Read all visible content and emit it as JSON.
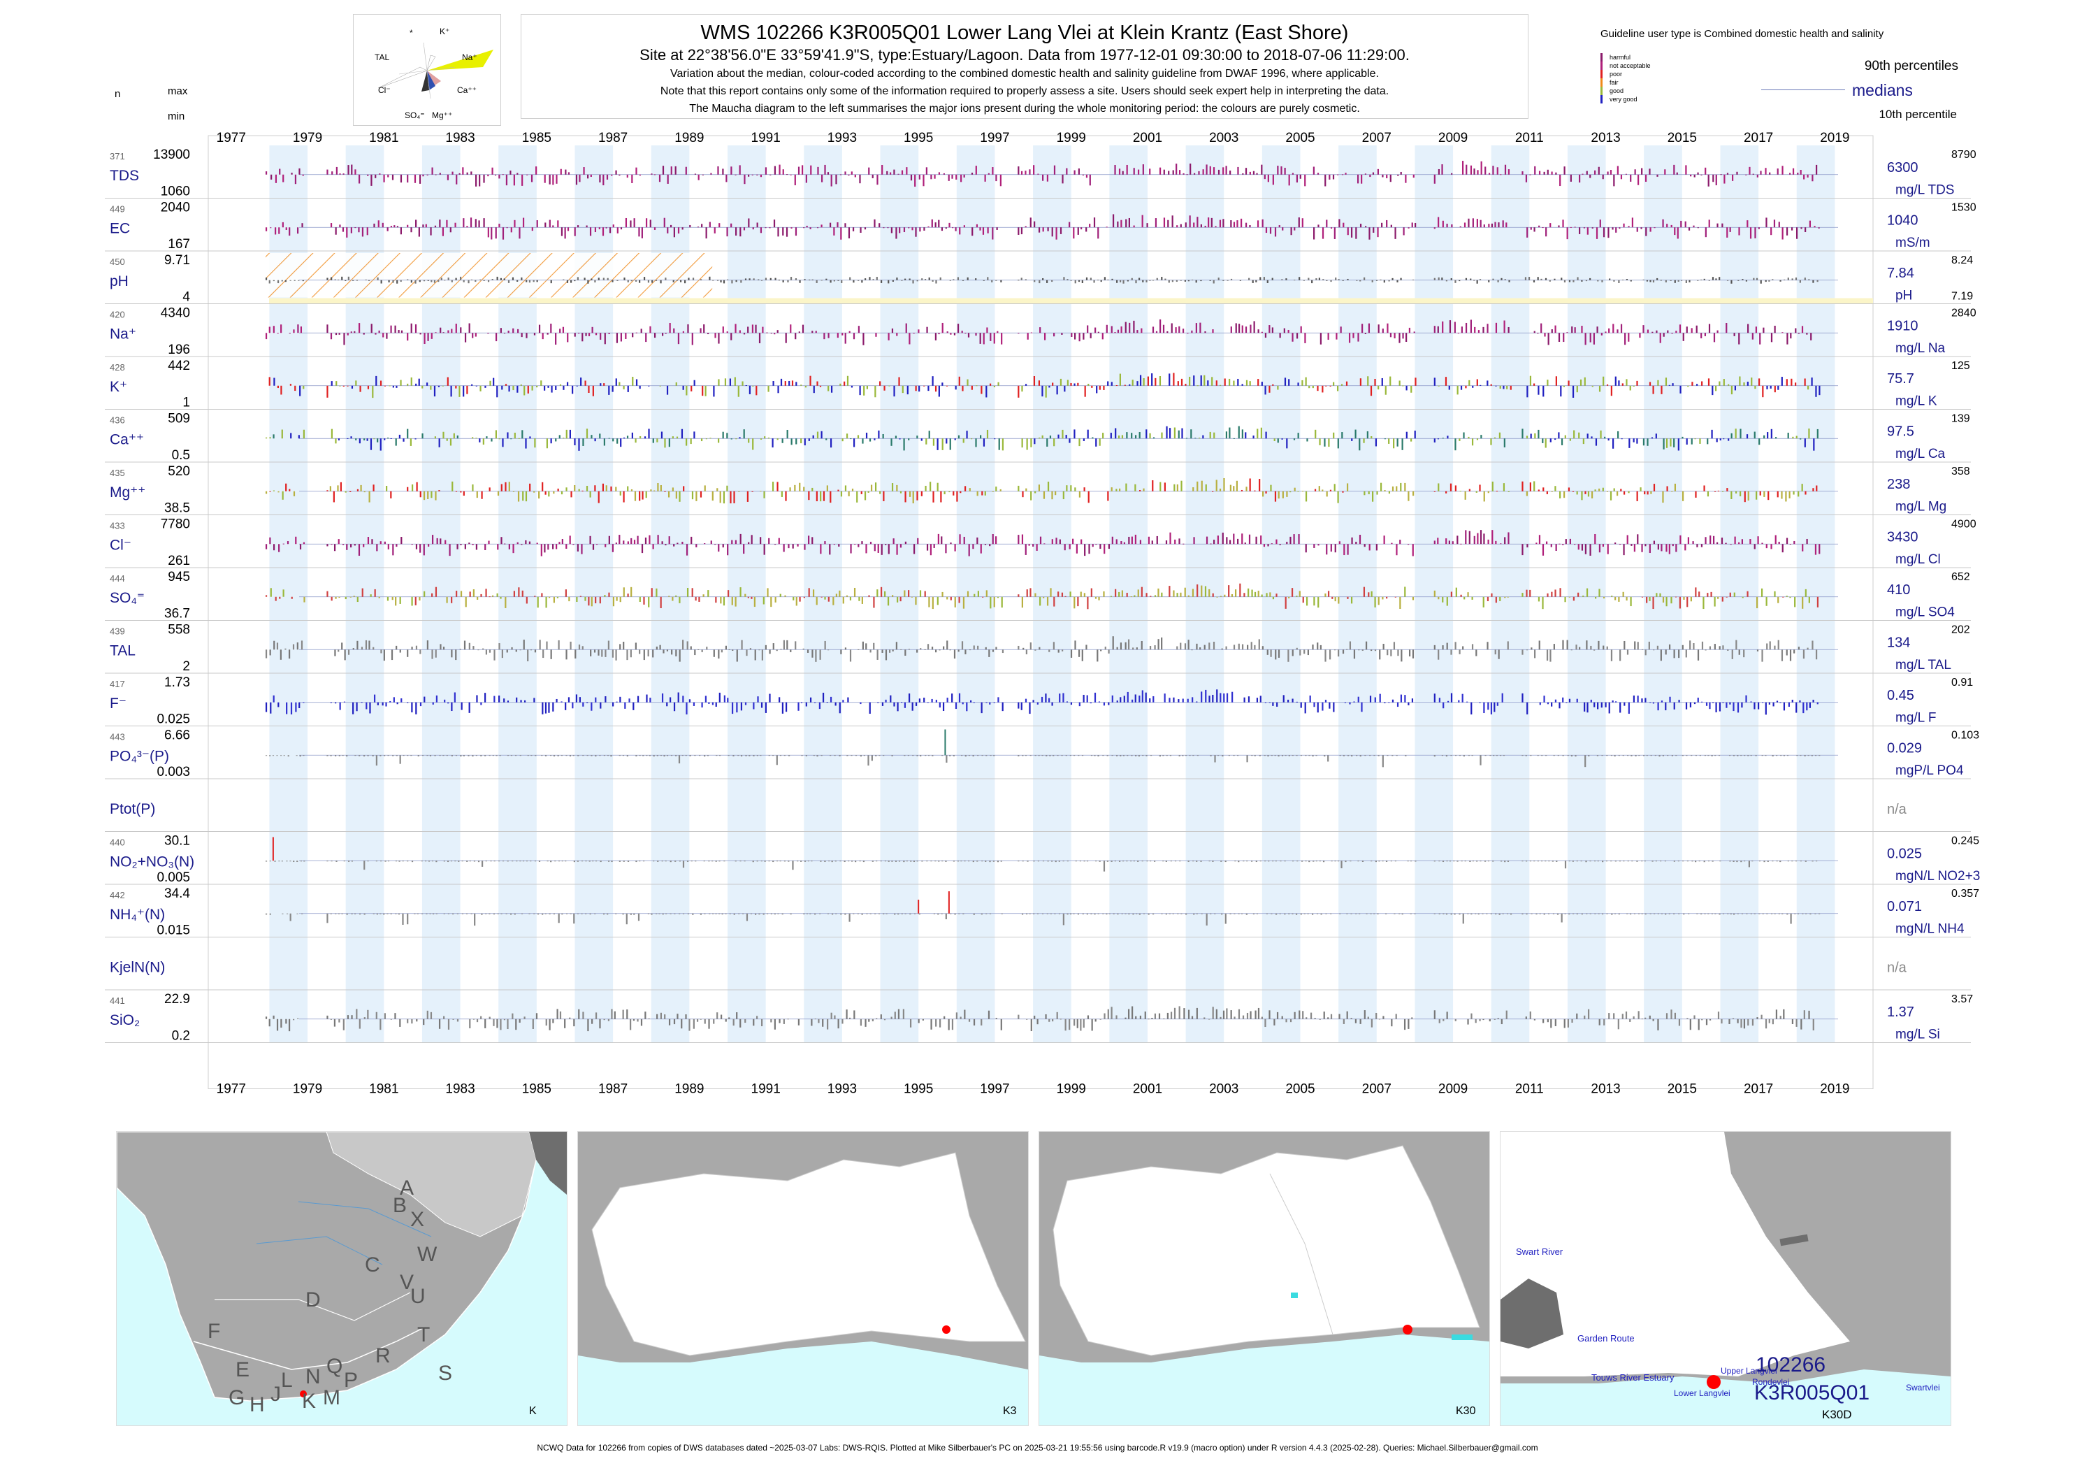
{
  "header": {
    "title": "WMS 102266 K3R005Q01 Lower Lang Vlei at Klein Krantz (East Shore)",
    "subtitle": "Site at 22°38'56.0\"E 33°59'41.9\"S, type:Estuary/Lagoon.  Data from 1977-12-01 09:30:00 to 2018-07-06 11:29:00.",
    "note1": "Variation about the median,  colour-coded according to the combined domestic health and salinity guideline from DWAF 1996, where applicable.",
    "note2": "Note that this report contains only some of the information required to properly assess a site. Users should seek expert help in interpreting the data.",
    "note3": "The Maucha diagram to the left summarises the major ions present during the whole monitoring period: the colours are purely cosmetic."
  },
  "maucha": {
    "labels": [
      "*",
      "K⁺",
      "TAL",
      "Na⁺",
      "Cl⁻",
      "Ca⁺⁺",
      "SO₄⁼",
      "Mg⁺⁺"
    ]
  },
  "left_header": {
    "n": "n",
    "max": "max",
    "min": "min"
  },
  "legend": {
    "guideline_text": "Guideline user type is Combined domestic health and salinity",
    "classes": [
      {
        "label": "harmful",
        "color": "#8b1a6b"
      },
      {
        "label": "not acceptable",
        "color": "#b0207a"
      },
      {
        "label": "poor",
        "color": "#e02020"
      },
      {
        "label": "fair",
        "color": "#f08a1a"
      },
      {
        "label": "good",
        "color": "#9ab83a"
      },
      {
        "label": "very good",
        "color": "#2020c0"
      }
    ],
    "p90_label": "90th percentiles",
    "median_label": "medians",
    "p10_label": "10th percentile"
  },
  "chart_data": {
    "type": "bar",
    "title": "WMS 102266 K3R005Q01 Lower Lang Vlei at Klein Krantz (East Shore)",
    "xlabel": "",
    "x_range": [
      1976.4,
      2020.0
    ],
    "years": [
      "1977",
      "1979",
      "1981",
      "1983",
      "1985",
      "1987",
      "1989",
      "1991",
      "1993",
      "1995",
      "1997",
      "1999",
      "2001",
      "2003",
      "2005",
      "2007",
      "2009",
      "2011",
      "2013",
      "2015",
      "2017",
      "2019"
    ],
    "grid": true,
    "legend": "top-right",
    "panels": [
      {
        "name": "TDS",
        "label": "TDS",
        "n": "371",
        "max": "13900",
        "min": "1060",
        "median": "6300",
        "p90": "8790",
        "p10": "",
        "unit": "mg/L TDS",
        "scheme": "salinity"
      },
      {
        "name": "EC",
        "label": "EC",
        "n": "449",
        "max": "2040",
        "min": "167",
        "median": "1040",
        "p90": "1530",
        "p10": "",
        "unit": "mS/m",
        "scheme": "salinity"
      },
      {
        "name": "pH",
        "label": "pH",
        "n": "450",
        "max": "9.71",
        "min": "4",
        "median": "7.84",
        "p90": "8.24",
        "p10": "7.19",
        "unit": "pH",
        "scheme": "ph"
      },
      {
        "name": "Na",
        "label": "Na⁺",
        "n": "420",
        "max": "4340",
        "min": "196",
        "median": "1910",
        "p90": "2840",
        "p10": "",
        "unit": "mg/L Na",
        "scheme": "salinity"
      },
      {
        "name": "K",
        "label": "K⁺",
        "n": "428",
        "max": "442",
        "min": "1",
        "median": "75.7",
        "p90": "125",
        "p10": "",
        "unit": "mg/L K",
        "scheme": "k"
      },
      {
        "name": "Ca",
        "label": "Ca⁺⁺",
        "n": "436",
        "max": "509",
        "min": "0.5",
        "median": "97.5",
        "p90": "139",
        "p10": "",
        "unit": "mg/L Ca",
        "scheme": "ca"
      },
      {
        "name": "Mg",
        "label": "Mg⁺⁺",
        "n": "435",
        "max": "520",
        "min": "38.5",
        "median": "238",
        "p90": "358",
        "p10": "",
        "unit": "mg/L Mg",
        "scheme": "mg"
      },
      {
        "name": "Cl",
        "label": "Cl⁻",
        "n": "433",
        "max": "7780",
        "min": "261",
        "median": "3430",
        "p90": "4900",
        "p10": "",
        "unit": "mg/L Cl",
        "scheme": "salinity"
      },
      {
        "name": "SO4",
        "label": "SO₄⁼",
        "n": "444",
        "max": "945",
        "min": "36.7",
        "median": "410",
        "p90": "652",
        "p10": "",
        "unit": "mg/L SO4",
        "scheme": "so4"
      },
      {
        "name": "TAL",
        "label": "TAL",
        "n": "439",
        "max": "558",
        "min": "2",
        "median": "134",
        "p90": "202",
        "p10": "",
        "unit": "mg/L TAL",
        "scheme": "grey"
      },
      {
        "name": "F",
        "label": "F⁻",
        "n": "417",
        "max": "1.73",
        "min": "0.025",
        "median": "0.45",
        "p90": "0.91",
        "p10": "",
        "unit": "mg/L F",
        "scheme": "blue"
      },
      {
        "name": "PO4",
        "label": "PO₄³⁻(P)",
        "n": "443",
        "max": "6.66",
        "min": "0.003",
        "median": "0.029",
        "p90": "0.103",
        "p10": "",
        "unit": "mgP/L PO4",
        "scheme": "spiky"
      },
      {
        "name": "Ptot",
        "label": "Ptot(P)",
        "n": "",
        "max": "",
        "min": "",
        "median": "n/a",
        "p90": "",
        "p10": "",
        "unit": "",
        "scheme": "none"
      },
      {
        "name": "NOx",
        "label": "NO₂+NO₃(N)",
        "n": "440",
        "max": "30.1",
        "min": "0.005",
        "median": "0.025",
        "p90": "0.245",
        "p10": "",
        "unit": "mgN/L NO2+3",
        "scheme": "spiky"
      },
      {
        "name": "NH4",
        "label": "NH₄⁺(N)",
        "n": "442",
        "max": "34.4",
        "min": "0.015",
        "median": "0.071",
        "p90": "0.357",
        "p10": "",
        "unit": "mgN/L NH4",
        "scheme": "spiky"
      },
      {
        "name": "KjelN",
        "label": "KjelN(N)",
        "n": "",
        "max": "",
        "min": "",
        "median": "n/a",
        "p90": "",
        "p10": "",
        "unit": "",
        "scheme": "none"
      },
      {
        "name": "SiO2",
        "label": "SiO₂",
        "n": "441",
        "max": "22.9",
        "min": "0.2",
        "median": "1.37",
        "p90": "3.57",
        "p10": "",
        "unit": "mg/L Si",
        "scheme": "grey"
      }
    ]
  },
  "maps": [
    {
      "name": "K",
      "labels": [
        "A",
        "B",
        "X",
        "W",
        "C",
        "V",
        "U",
        "D",
        "T",
        "F",
        "E",
        "S",
        "G",
        "H",
        "J",
        "K",
        "L",
        "N",
        "Q",
        "P",
        "M",
        "R"
      ]
    },
    {
      "name": "K3",
      "labels": []
    },
    {
      "name": "K30",
      "labels": []
    },
    {
      "name": "K30D",
      "labels": [
        "Swart River",
        "Garden Route",
        "Touws River Estuary",
        "Upper Langvlei",
        "Lower Langvlei",
        "Rondevlei",
        "Swartvlei",
        "102266",
        "K3R005Q01"
      ]
    }
  ],
  "footer": "NCWQ Data for 102266 from copies of DWS databases dated ~2025-03-07 Labs: DWS-RQIS. Plotted at Mike Silberbauer's PC on 2025-03-21 19:55:56 using barcode.R v19.9 (macro option) under R version 4.4.3 (2025-02-28). Queries: Michael.Silberbauer@gmail.com"
}
